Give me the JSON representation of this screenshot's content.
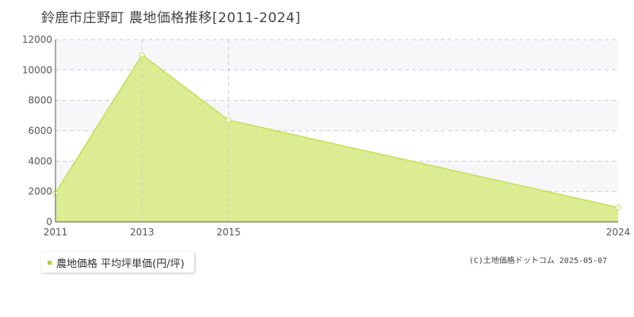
{
  "title": "鈴鹿市庄野町 農地価格推移[2011-2024]",
  "legend_label": "農地価格 平均坪単価(円/坪)",
  "copyright": "(C)土地価格ドットコム 2025-05-07",
  "colors": {
    "area_fill": "#dbec93",
    "area_line": "#c3e052",
    "legend_swatch": "#a8d22e",
    "grid": "#cccccc",
    "band": "#f7f6f8",
    "axis": "#555555"
  },
  "chart_data": {
    "type": "area",
    "title": "鈴鹿市庄野町 農地価格推移[2011-2024]",
    "xlabel": "",
    "ylabel": "",
    "x_ticks": [
      "2011",
      "2013",
      "2015",
      "2024"
    ],
    "y_ticks": [
      "0",
      "2000",
      "4000",
      "6000",
      "8000",
      "10000",
      "12000"
    ],
    "ylim": [
      0,
      12000
    ],
    "grid": true,
    "legend_position": "bottom-left",
    "series": [
      {
        "name": "農地価格 平均坪単価(円/坪)",
        "points": [
          {
            "x": "2011",
            "y": 1900
          },
          {
            "x": "2013",
            "y": 11000
          },
          {
            "x": "2015",
            "y": 6700
          },
          {
            "x": "2024",
            "y": 950
          }
        ]
      }
    ]
  }
}
